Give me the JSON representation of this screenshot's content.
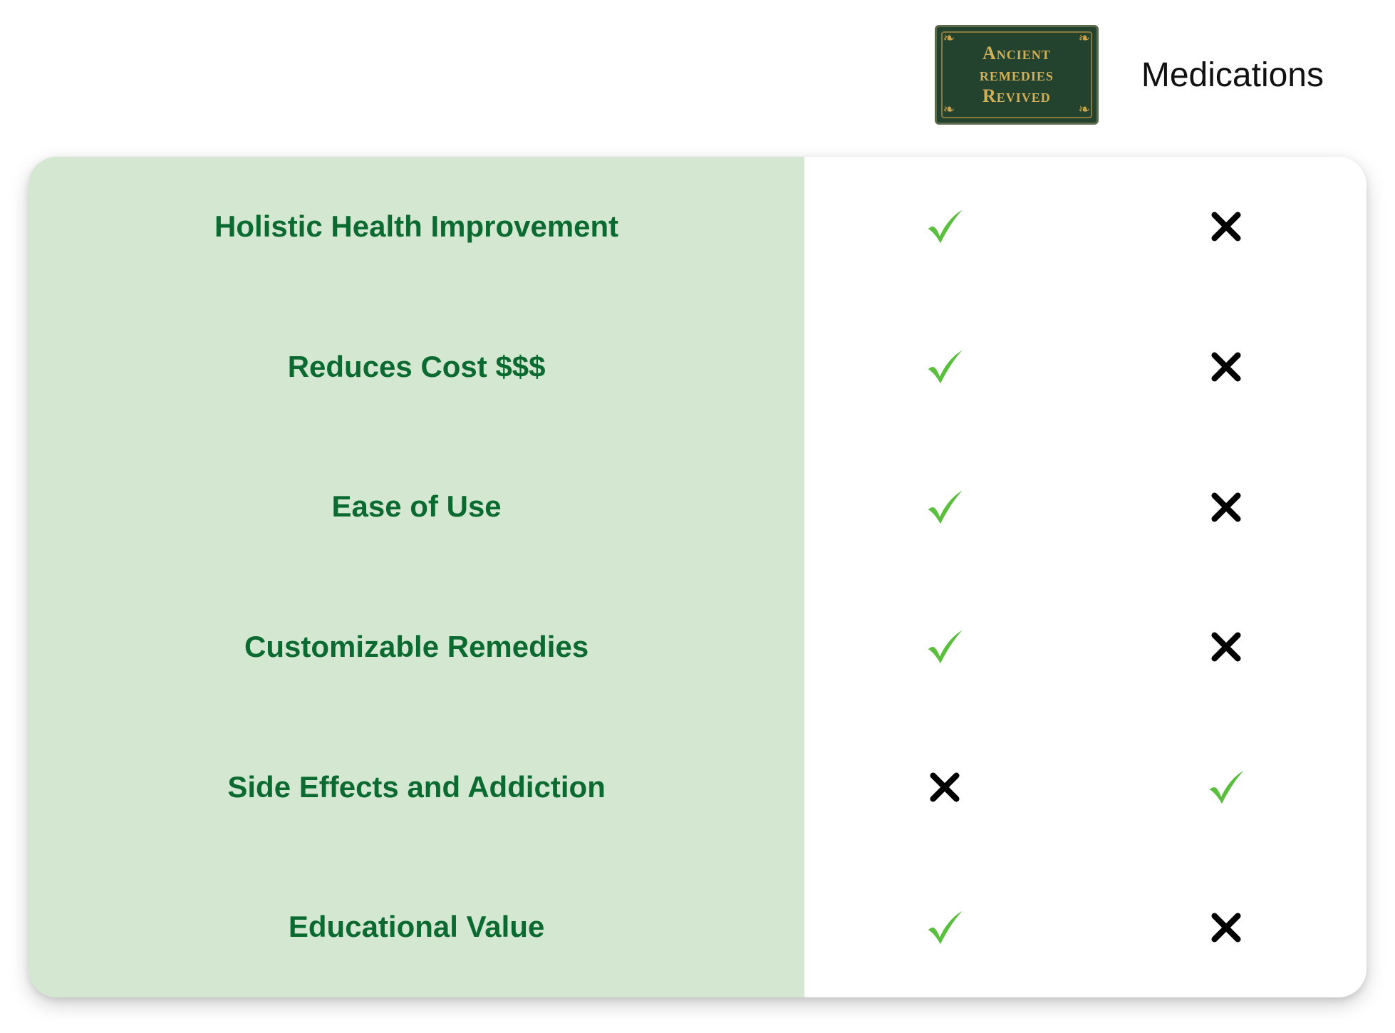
{
  "type": "comparison-table",
  "brand": {
    "line1": "Ancient",
    "line2": "remedies",
    "line3": "Revived",
    "badge_bg": "#24432f",
    "badge_border": "#5b6a4a",
    "badge_inner_border": "#8a7a3f",
    "badge_text_color": "#d1b05a",
    "badge_corner_color": "#c9a24a"
  },
  "columns": {
    "col2_header": "Medications",
    "header_color": "#111111",
    "header_fontsize": 48
  },
  "card": {
    "left_bg": "#d3e7d1",
    "right_bg": "#ffffff",
    "border_radius": 40,
    "shadow": "0 10px 28px rgba(0,0,0,0.18)"
  },
  "colors": {
    "feature_text": "#0b6a30",
    "check": "#5bbf3e",
    "cross": "#000000"
  },
  "typography": {
    "feature_fontsize": 42,
    "feature_fontweight": 700,
    "brand_fontsize": 26
  },
  "rows": [
    {
      "label": "Holistic Health Improvement",
      "col1": "check",
      "col2": "cross"
    },
    {
      "label": "Reduces Cost $$$",
      "col1": "check",
      "col2": "cross"
    },
    {
      "label": "Ease of Use",
      "col1": "check",
      "col2": "cross"
    },
    {
      "label": "Customizable Remedies",
      "col1": "check",
      "col2": "cross"
    },
    {
      "label": "Side Effects and Addiction",
      "col1": "cross",
      "col2": "check"
    },
    {
      "label": "Educational Value",
      "col1": "check",
      "col2": "cross"
    }
  ]
}
